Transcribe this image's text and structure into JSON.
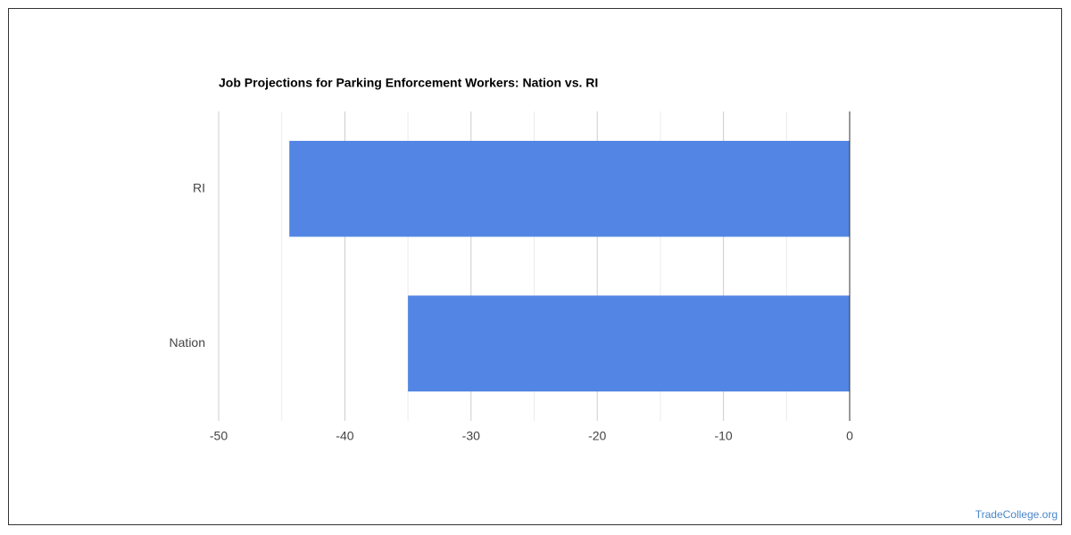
{
  "chart_data": {
    "type": "bar",
    "orientation": "horizontal",
    "title": "Job Projections for Parking Enforcement Workers: Nation vs. RI",
    "categories": [
      "RI",
      "Nation"
    ],
    "values": [
      -44.4,
      -35
    ],
    "color": "#5386e4",
    "xlim": [
      -50,
      0
    ],
    "xticks": [
      -50,
      -40,
      -30,
      -20,
      -10,
      0
    ],
    "xminorticks": [
      -45,
      -35,
      -25,
      -15,
      -5
    ],
    "grid": true,
    "source": "TradeCollege.org"
  }
}
